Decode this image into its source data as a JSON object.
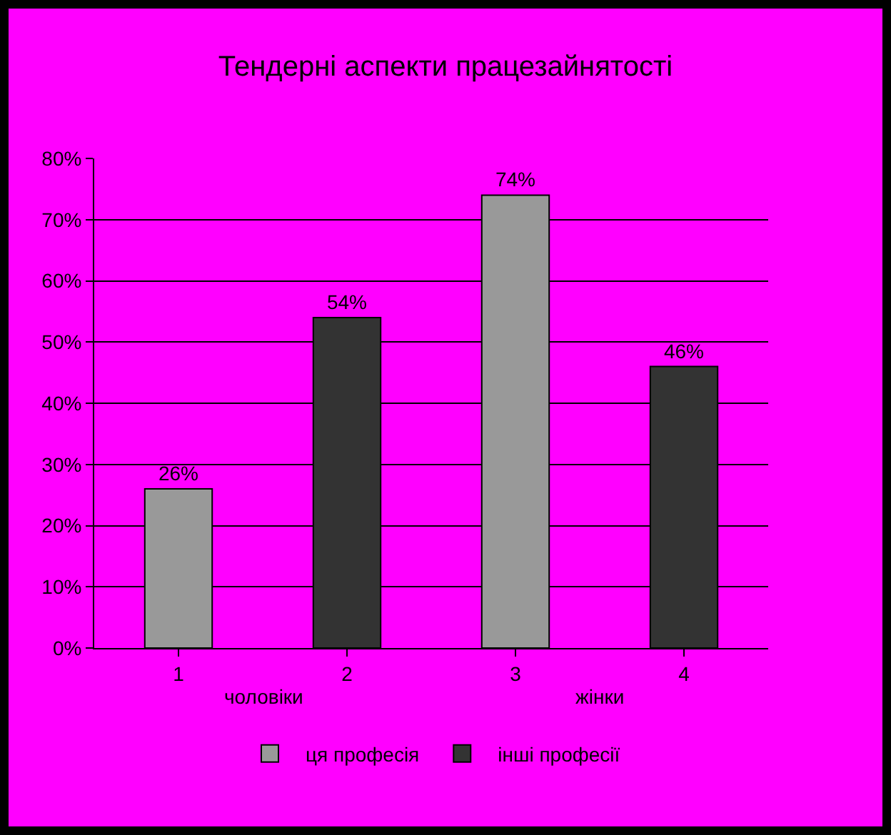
{
  "chart_data": {
    "type": "bar",
    "title": "Тендерні аспекти працезайнятості",
    "categories": [
      "1",
      "2",
      "3",
      "4"
    ],
    "series": [
      {
        "name": "ця професія",
        "color": "#999999",
        "values": [
          26,
          null,
          74,
          null
        ],
        "value_labels": [
          "26%",
          null,
          "74%",
          null
        ]
      },
      {
        "name": "інші професії",
        "color": "#333333",
        "values": [
          null,
          54,
          null,
          46
        ],
        "value_labels": [
          null,
          "54%",
          null,
          "46%"
        ]
      }
    ],
    "annotations": [
      "чоловіки",
      "жінки"
    ],
    "ylim": [
      0,
      80
    ],
    "yticks": [
      {
        "value": 0,
        "label": "0%"
      },
      {
        "value": 10,
        "label": "10%"
      },
      {
        "value": 20,
        "label": "20%"
      },
      {
        "value": 30,
        "label": "30%"
      },
      {
        "value": 40,
        "label": "40%"
      },
      {
        "value": 50,
        "label": "50%"
      },
      {
        "value": 60,
        "label": "60%"
      },
      {
        "value": 70,
        "label": "70%"
      },
      {
        "value": 80,
        "label": "80%"
      }
    ],
    "grid": "y",
    "legend": "bottom"
  }
}
